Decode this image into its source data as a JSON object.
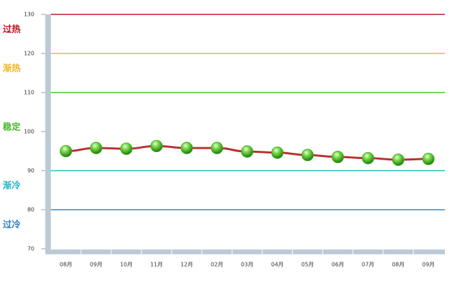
{
  "chart_data": {
    "type": "line",
    "categories": [
      "08月",
      "09月",
      "10月",
      "11月",
      "12月",
      "02月",
      "03月",
      "04月",
      "05月",
      "06月",
      "07月",
      "08月",
      "09月"
    ],
    "values": [
      95,
      95.8,
      95.6,
      96.3,
      95.8,
      95.8,
      94.9,
      94.6,
      94,
      93.5,
      93.2,
      92.8,
      93
    ],
    "color": "#b83030",
    "marker_color": "#3cab1c",
    "ylim": [
      70,
      130
    ],
    "yticks": [
      70,
      80,
      90,
      100,
      110,
      120,
      130
    ],
    "reference_lines": [
      {
        "value": 130,
        "color": "#c0141c"
      },
      {
        "value": 120,
        "color": "#f0b429"
      },
      {
        "value": 110,
        "color": "#4cc12c"
      },
      {
        "value": 90,
        "color": "#22bcc4"
      },
      {
        "value": 80,
        "color": "#2a86c6"
      }
    ],
    "zones": [
      {
        "label": "过热",
        "color": "#b5121b"
      },
      {
        "label": "渐热",
        "color": "#f0b429"
      },
      {
        "label": "稳定",
        "color": "#4cb830"
      },
      {
        "label": "渐冷",
        "color": "#22b4c4"
      },
      {
        "label": "过冷",
        "color": "#2a7fc0"
      }
    ]
  }
}
